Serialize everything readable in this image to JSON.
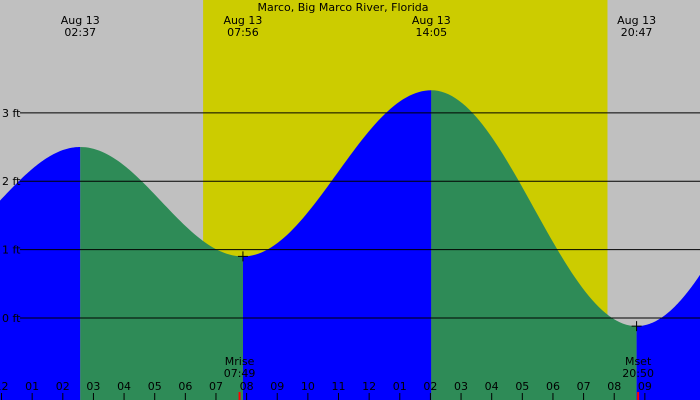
{
  "chart_data": {
    "type": "area",
    "title": "Marco, Big Marco River, Florida",
    "ylim": [
      -1.2,
      4.65
    ],
    "xlim": [
      0.0,
      22.85
    ],
    "daylight": {
      "start": 6.63,
      "end": 19.83
    },
    "ytick_labels": [
      {
        "value": 0,
        "label": "0 ft"
      },
      {
        "value": 1,
        "label": "1 ft"
      },
      {
        "value": 2,
        "label": "2 ft"
      },
      {
        "value": 3,
        "label": "3 ft"
      }
    ],
    "extremes": [
      {
        "type": "high",
        "date": "Aug 13",
        "time": "02:37",
        "t": 2.62,
        "height": 2.5
      },
      {
        "type": "low",
        "date": "Aug 13",
        "time": "07:56",
        "t": 7.93,
        "height": 0.9
      },
      {
        "type": "high",
        "date": "Aug 13",
        "time": "14:05",
        "t": 14.08,
        "height": 3.33
      },
      {
        "type": "low",
        "date": "Aug 13",
        "time": "20:47",
        "t": 20.78,
        "height": -0.12
      }
    ],
    "hour_ticks": [
      {
        "t": -0.95,
        "label": "11"
      },
      {
        "t": 0.05,
        "label": "12"
      },
      {
        "t": 1.05,
        "label": "01"
      },
      {
        "t": 2.05,
        "label": "02"
      },
      {
        "t": 3.05,
        "label": "03"
      },
      {
        "t": 4.05,
        "label": "04"
      },
      {
        "t": 5.05,
        "label": "05"
      },
      {
        "t": 6.05,
        "label": "06"
      },
      {
        "t": 7.05,
        "label": "07"
      },
      {
        "t": 8.05,
        "label": "08"
      },
      {
        "t": 9.05,
        "label": "09"
      },
      {
        "t": 10.05,
        "label": "10"
      },
      {
        "t": 11.05,
        "label": "11"
      },
      {
        "t": 12.05,
        "label": "12"
      },
      {
        "t": 13.05,
        "label": "01"
      },
      {
        "t": 14.05,
        "label": "02"
      },
      {
        "t": 15.05,
        "label": "03"
      },
      {
        "t": 16.05,
        "label": "04"
      },
      {
        "t": 17.05,
        "label": "05"
      },
      {
        "t": 18.05,
        "label": "06"
      },
      {
        "t": 19.05,
        "label": "07"
      },
      {
        "t": 20.05,
        "label": "08"
      },
      {
        "t": 21.05,
        "label": "09"
      }
    ],
    "moon_events": [
      {
        "name": "Mrise",
        "time": "07:49",
        "t": 7.82
      },
      {
        "name": "Mset",
        "time": "20:50",
        "t": 20.83
      }
    ],
    "colors": {
      "background": "#c0c0c0",
      "daylight": "#cccc00",
      "rising": "#0000ff",
      "falling": "#2e8b57",
      "gridline": "#000000",
      "moon_tick": "#ff0000"
    }
  }
}
